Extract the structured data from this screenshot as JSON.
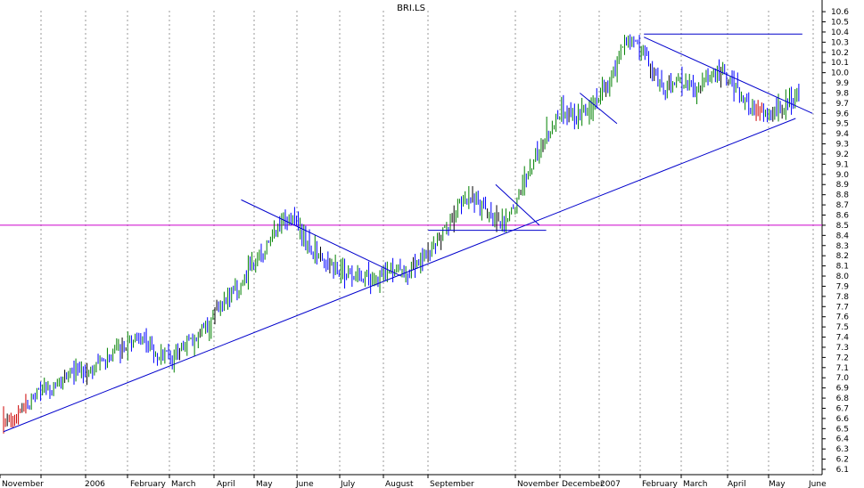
{
  "chart_data": {
    "type": "line",
    "title": "BRI.LS",
    "xlabel": "",
    "ylabel": "",
    "ylim": [
      6.1,
      10.6
    ],
    "y_ticks": [
      "6.1",
      "6.2",
      "6.3",
      "6.4",
      "6.5",
      "6.6",
      "6.7",
      "6.8",
      "6.9",
      "7.0",
      "7.1",
      "7.2",
      "7.3",
      "7.4",
      "7.5",
      "7.6",
      "7.7",
      "7.8",
      "7.9",
      "8.0",
      "8.1",
      "8.2",
      "8.3",
      "8.4",
      "8.5",
      "8.6",
      "8.7",
      "8.8",
      "8.9",
      "9.0",
      "9.1",
      "9.2",
      "9.3",
      "9.4",
      "9.5",
      "9.6",
      "9.7",
      "9.8",
      "9.9",
      "10.0",
      "10.1",
      "10.2",
      "10.3",
      "10.4",
      "10.5",
      "10.6"
    ],
    "x_ticks": [
      "November",
      "2006",
      "February",
      "March",
      "April",
      "May",
      "June",
      "July",
      "August",
      "September",
      "November",
      "December",
      "2007",
      "February",
      "March",
      "April",
      "May",
      "June"
    ],
    "grid": "vertical dashed",
    "colors": {
      "up": "#008000",
      "down": "#0000ff",
      "neutral": "#000000",
      "weak": "#cc0000",
      "trendline": "#0000cc",
      "horizontal_line": "#cc00cc",
      "grid": "#999999"
    },
    "horizontal_line": 8.5,
    "series": [
      {
        "x": [
          0,
          0.5,
          1,
          1.5,
          2,
          2.5,
          3,
          3.5,
          4,
          4.5,
          5,
          5.5,
          6,
          6.5,
          7,
          7.5,
          8,
          8.5,
          9,
          9.5,
          10,
          10.5,
          11,
          11.5,
          12,
          12.5,
          13,
          13.5,
          14,
          14.5,
          15,
          15.5,
          16,
          16.5,
          17,
          17.5,
          18,
          18.5,
          19
        ],
        "values": [
          6.55,
          6.65,
          6.85,
          6.9,
          7.05,
          7.1,
          7.15,
          7.3,
          7.4,
          7.25,
          7.2,
          7.35,
          7.5,
          7.75,
          7.9,
          8.15,
          8.4,
          8.6,
          8.3,
          8.15,
          8.05,
          8.0,
          7.95,
          8.05,
          8.0,
          8.2,
          8.4,
          8.7,
          8.8,
          8.55,
          8.55,
          9.0,
          9.3,
          9.6,
          9.55,
          9.7,
          9.95,
          10.35,
          10.2
        ],
        "tail_x": [
          19,
          19.5,
          20,
          20.5,
          21,
          21.5,
          22,
          22.5,
          23,
          23.5
        ],
        "tail_values": [
          10.2,
          9.85,
          9.9,
          9.85,
          9.95,
          9.95,
          9.7,
          9.6,
          9.65,
          9.75
        ]
      }
    ],
    "annotations": {
      "support_trendline": {
        "from": [
          6.47,
          0
        ],
        "to": [
          9.55,
          23.5
        ]
      },
      "resistance_1": {
        "from": [
          8.75,
          7.05
        ],
        "to": [
          8.0,
          11.8
        ]
      },
      "resistance_2": {
        "from": [
          8.9,
          14.6
        ],
        "to": [
          8.5,
          15.9
        ]
      },
      "resistance_3": {
        "from": [
          9.8,
          17.1
        ],
        "to": [
          9.5,
          18.2
        ]
      },
      "resistance_4": {
        "from": [
          10.35,
          19.0
        ],
        "to": [
          9.6,
          24.0
        ]
      },
      "flat_1": {
        "level": 8.45,
        "from": 12.6,
        "to": 16.1
      },
      "flat_2": {
        "level": 10.38,
        "from": 19.0,
        "to": 23.7
      }
    }
  }
}
